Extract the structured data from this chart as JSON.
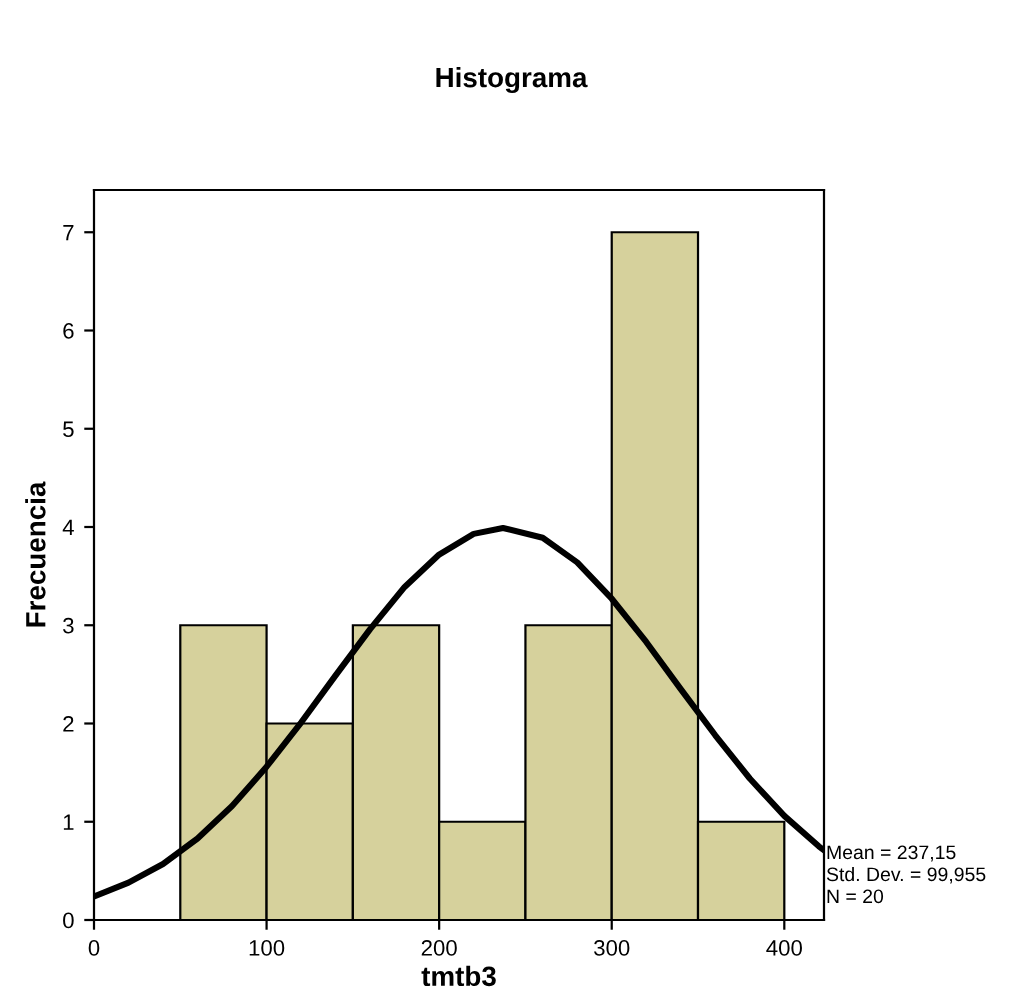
{
  "chart_data": {
    "type": "histogram",
    "title": "Histograma",
    "xlabel": "tmtb3",
    "ylabel": "Frecuencia",
    "bins": [
      50,
      100,
      150,
      200,
      250,
      300,
      350,
      400
    ],
    "values": [
      3,
      2,
      3,
      1,
      3,
      7,
      1
    ],
    "color": "#d6d19c",
    "xlim": [
      0,
      423
    ],
    "ylim": [
      0,
      7.43
    ],
    "xticks": [
      0,
      100,
      200,
      300,
      400
    ],
    "yticks": [
      0,
      1,
      2,
      3,
      4,
      5,
      6,
      7
    ],
    "grid": false,
    "legend": false,
    "series": [
      {
        "type": "line",
        "color": "#000000",
        "x": [
          0,
          20,
          40,
          60,
          80,
          100,
          120,
          140,
          160,
          180,
          200,
          220,
          237,
          260,
          280,
          300,
          320,
          340,
          360,
          380,
          400,
          420,
          423
        ],
        "values": [
          0.24,
          0.38,
          0.57,
          0.83,
          1.16,
          1.56,
          2.01,
          2.49,
          2.96,
          3.39,
          3.72,
          3.93,
          3.99,
          3.89,
          3.64,
          3.27,
          2.83,
          2.35,
          1.88,
          1.44,
          1.06,
          0.75,
          0.71
        ]
      }
    ],
    "annotations": [
      "Mean = 237,15",
      "Std. Dev. = 99,955",
      "N = 20"
    ]
  }
}
